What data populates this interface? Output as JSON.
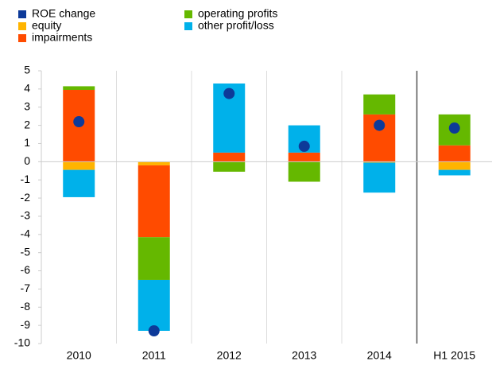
{
  "chart_data": {
    "type": "bar",
    "stacked": true,
    "categories": [
      "2010",
      "2011",
      "2012",
      "2013",
      "2014",
      "H1 2015"
    ],
    "series": [
      {
        "name": "ROE change",
        "color": "#0d3a99",
        "type": "scatter",
        "values": [
          2.2,
          -9.3,
          3.75,
          0.85,
          2.0,
          1.85
        ]
      },
      {
        "name": "equity",
        "color": "#ffb400",
        "values": [
          -0.45,
          -0.2,
          0,
          0,
          -0.05,
          -0.45
        ]
      },
      {
        "name": "impairments",
        "color": "#ff4b00",
        "values": [
          3.95,
          -3.95,
          0.5,
          0.5,
          2.6,
          0.9
        ]
      },
      {
        "name": "operating profits",
        "color": "#65b800",
        "values": [
          0.2,
          -2.35,
          -0.55,
          -1.1,
          1.1,
          1.7
        ]
      },
      {
        "name": "other profit/loss",
        "color": "#00b1ea",
        "values": [
          -1.5,
          -2.8,
          3.8,
          1.5,
          -1.65,
          -0.3
        ]
      }
    ],
    "ylim": [
      -10,
      5
    ],
    "yticks": [
      -10,
      -9,
      -8,
      -7,
      -6,
      -5,
      -4,
      -3,
      -2,
      -1,
      0,
      1,
      2,
      3,
      4,
      5
    ],
    "legend": "top-left"
  }
}
